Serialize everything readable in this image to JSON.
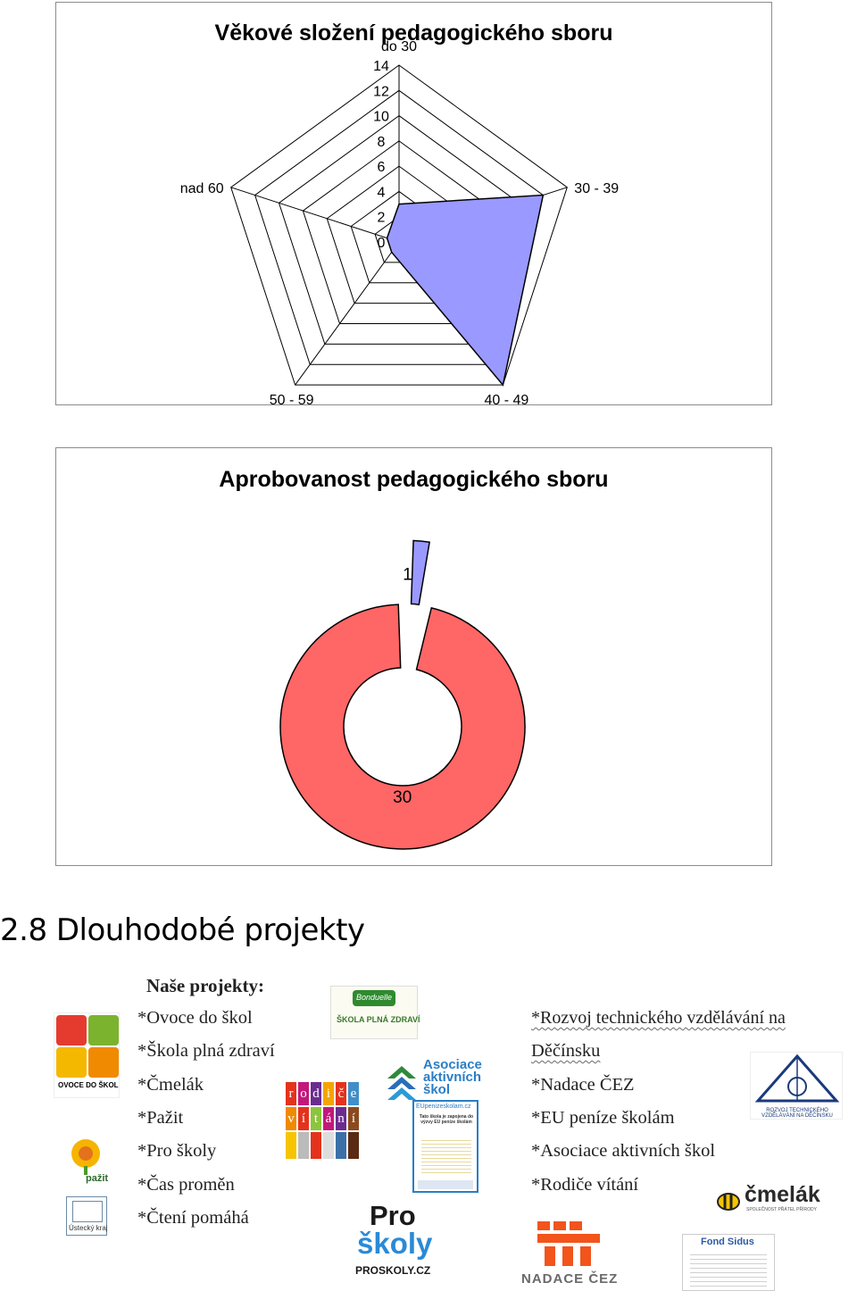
{
  "radar_chart": {
    "title": "Věkové složení pedagogického sboru",
    "chart_data": {
      "type": "radar",
      "title": "Věkové složení pedagogického sboru",
      "categories": [
        "do 30",
        "30 - 39",
        "40 - 49",
        "50 - 59",
        "nad 60"
      ],
      "values": [
        3,
        12,
        14,
        1,
        1
      ],
      "ticks": [
        "0",
        "2",
        "4",
        "6",
        "8",
        "10",
        "12",
        "14"
      ],
      "rlim": [
        0,
        14
      ],
      "fill_color": "#9999ff",
      "grid": true,
      "legend": "none"
    }
  },
  "donut_chart": {
    "title": "Aprobovanost pedagogického sboru",
    "chart_data": {
      "type": "pie",
      "variant": "donut",
      "title": "Aprobovanost pedagogického sboru",
      "values": [
        1,
        30
      ],
      "data_labels": [
        "1",
        "30"
      ],
      "colors": [
        "#9999ff",
        "#ff6666"
      ],
      "exploded": [
        true,
        false
      ],
      "legend": "none"
    }
  },
  "section": {
    "heading": "2.8 Dlouhodobé projekty"
  },
  "projects": {
    "heading": "Naše projekty:",
    "left_list": [
      "*Ovoce do škol",
      "*Škola plná zdraví",
      "*Čmelák",
      "*Pažit",
      "*Pro školy",
      "*Čas proměn",
      "*Čtení pomáhá"
    ],
    "right_list_line1": "*Rozvoj technického vzdělávání na",
    "right_list_line1_cont": "Děčínsku",
    "right_list": [
      "*Nadace ČEZ",
      "*EU peníze školám",
      "*Asociace aktivních škol",
      "*Rodiče vítání"
    ]
  },
  "logos": {
    "ovoce": "OVOCE DO ŠKOL",
    "bonduelle": "Bonduelle",
    "skola_plna": "ŠKOLA PLNÁ ZDRAVÍ",
    "rodice_top": [
      "r",
      "o",
      "d",
      "i",
      "č",
      "e"
    ],
    "rodice_bottom": [
      "v",
      "í",
      "t",
      "á",
      "n",
      "í"
    ],
    "asociace": [
      "Asociace",
      "aktivních",
      "škol"
    ],
    "eu_title": "EUpenizeskolam.cz",
    "eu_text": "Tato škola je zapojena do výzvy EU peníze školám",
    "pazit": "pažit",
    "ustecky": "Ústecký kraj",
    "pro": "Pro",
    "skoly": "školy",
    "proskoly": "PROSKOLY.CZ",
    "rozvoj": "ROZVOJ TECHNICKÉHO VZDĚLÁVÁNÍ NA DĚČÍNSKU",
    "cmelak": "čmelák",
    "cmelak_sub": "SPOLEČNOST PŘÁTEL PŘÍRODY",
    "nadace": "NADACE ČEZ",
    "fond": "Fond Sidus"
  },
  "colors": {
    "radar_fill": "#9999ff",
    "donut_main": "#ff6666",
    "donut_small": "#9999ff",
    "chart_border": "#8c8c8c"
  }
}
